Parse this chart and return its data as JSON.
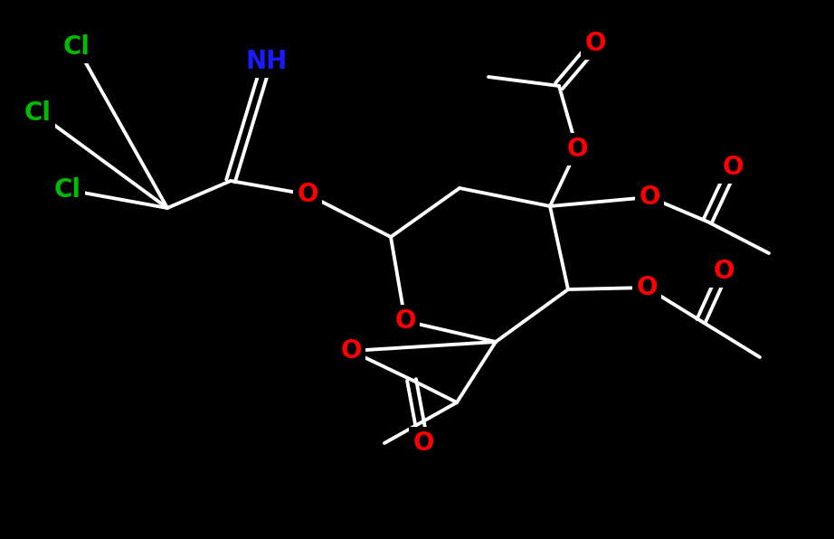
{
  "bg_color": "#000000",
  "bond_color": "#ffffff",
  "bond_width": 2.8,
  "atom_colors": {
    "O": "#ff0000",
    "N": "#1a1aff",
    "Cl": "#00bb00",
    "C": "#ffffff"
  },
  "font_size": 20
}
